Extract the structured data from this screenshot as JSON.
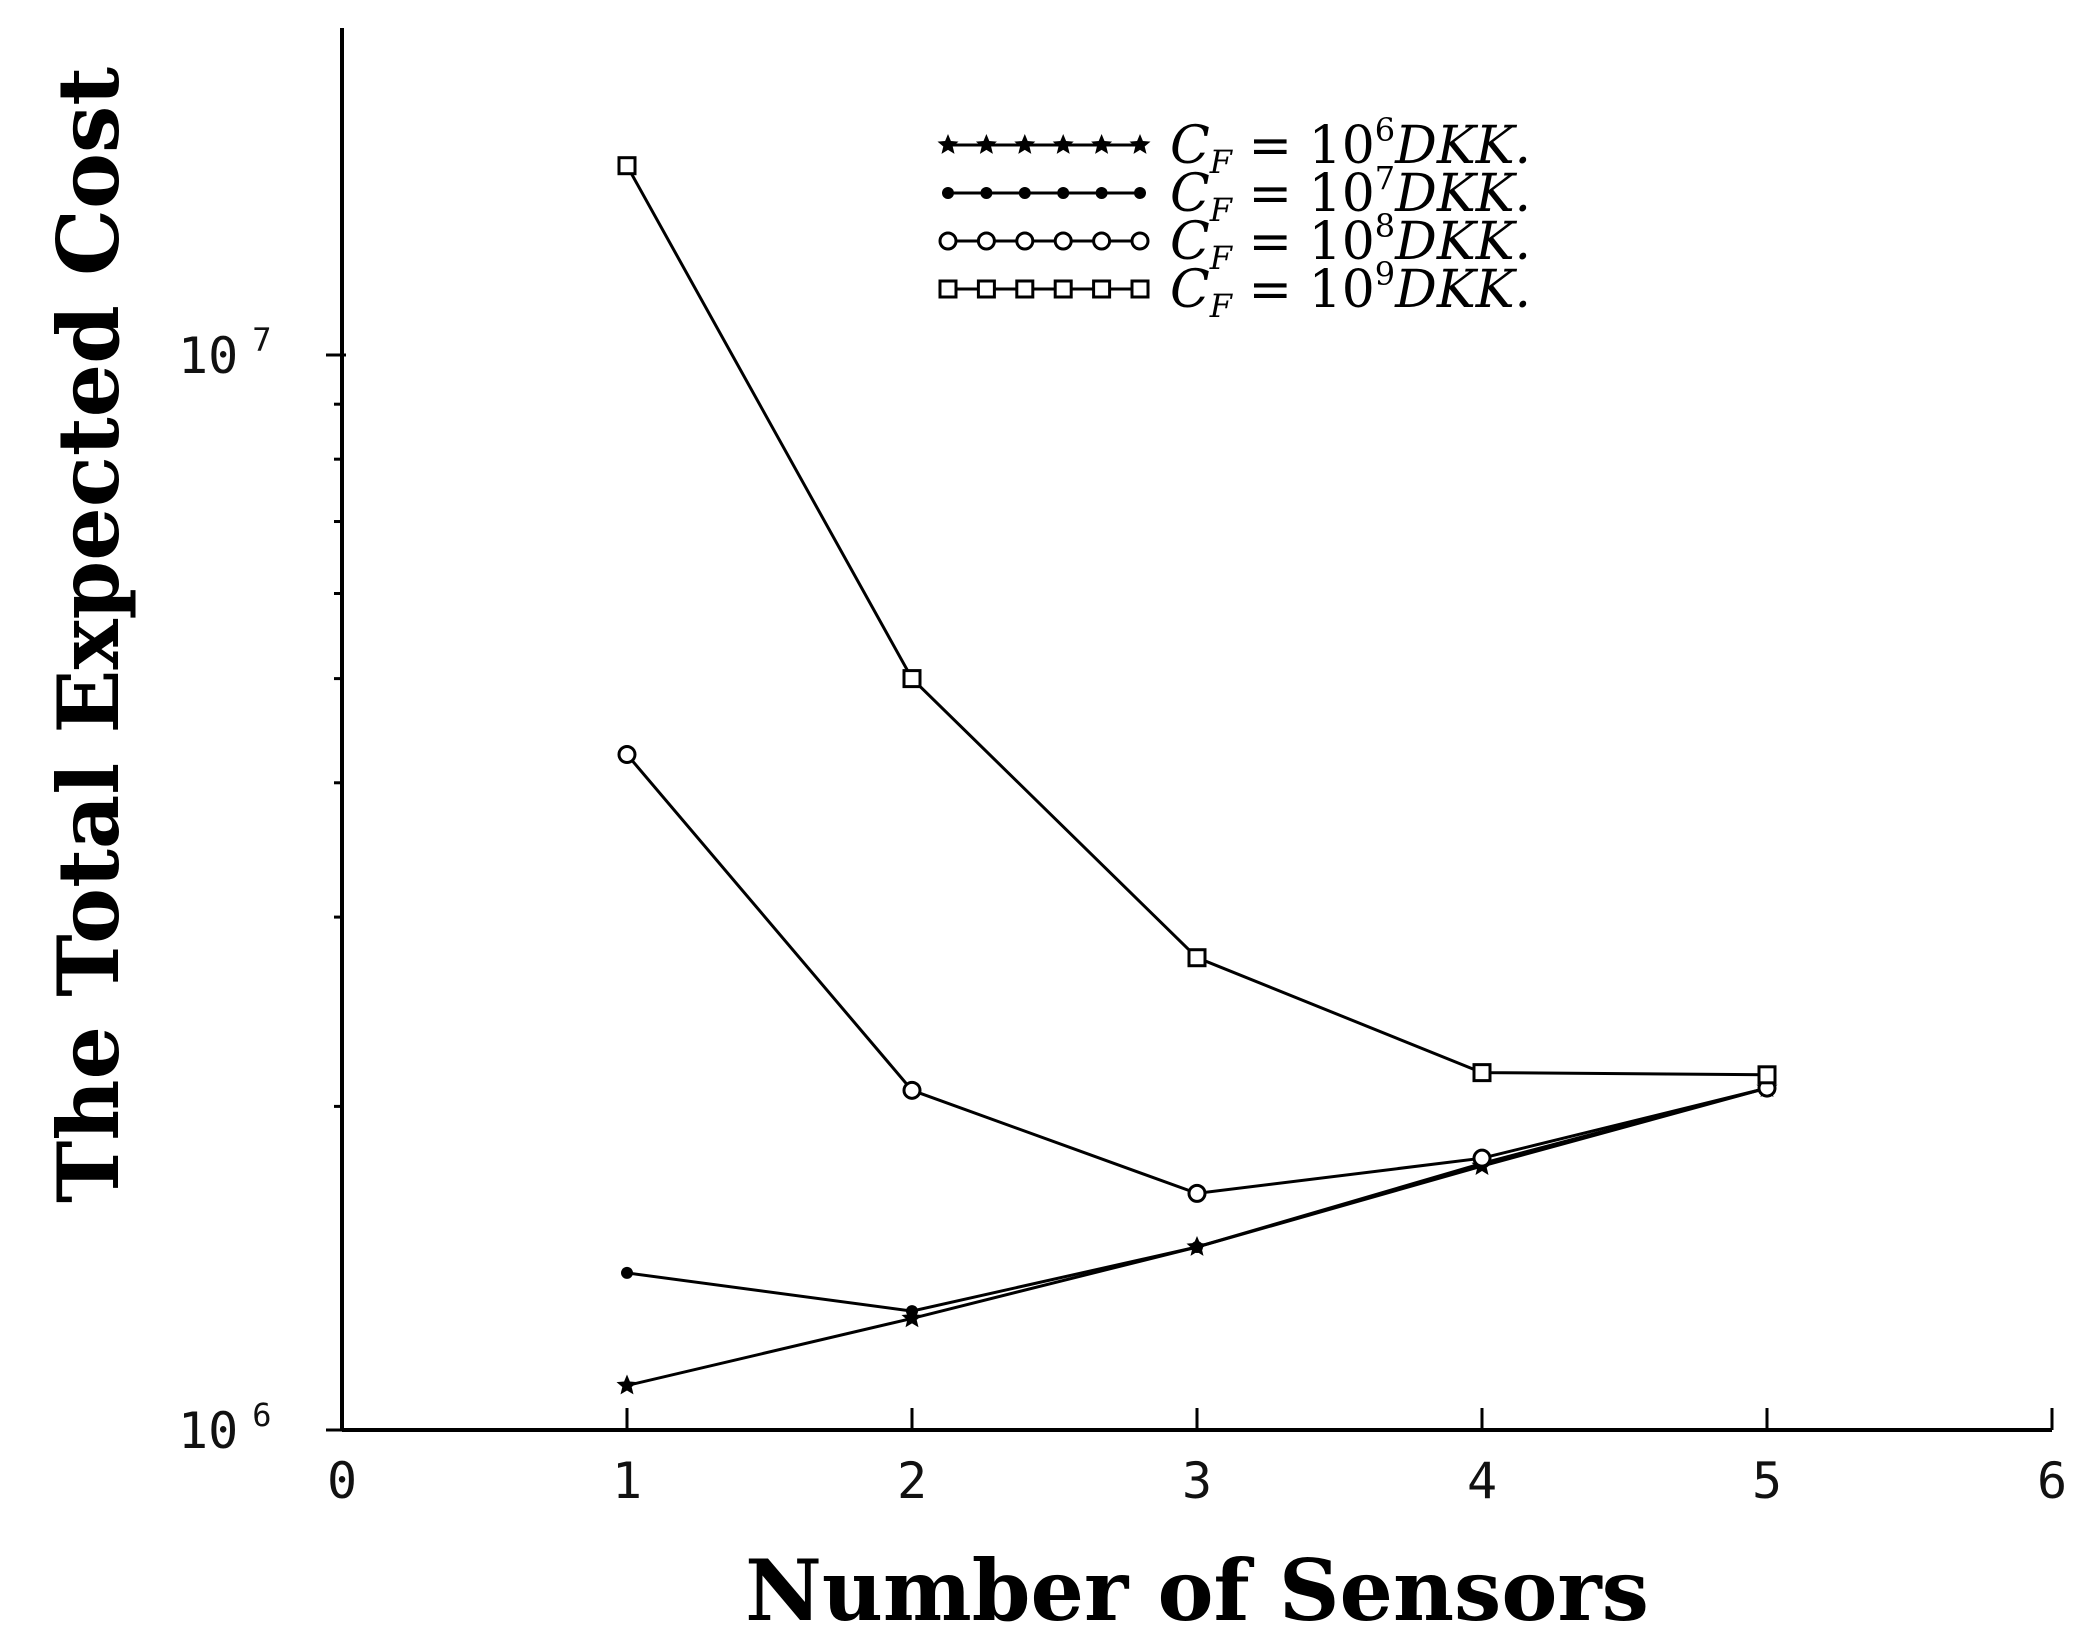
{
  "chart_data": {
    "type": "line",
    "xlabel": "Number of Sensors",
    "ylabel": "The Total Expected Cost",
    "xlim": [
      0,
      6
    ],
    "ylim": [
      1000000,
      17000000
    ],
    "y_scale": "log",
    "x_ticks": [
      "0",
      "1",
      "2",
      "3",
      "4",
      "5",
      "6"
    ],
    "y_tick_labels": [
      {
        "value": 1000000,
        "label": "10",
        "exp": "6"
      },
      {
        "value": 10000000,
        "label": "10",
        "exp": "7"
      }
    ],
    "y_minor_ticks": [
      2000000,
      3000000,
      4000000,
      5000000,
      6000000,
      7000000,
      8000000,
      9000000
    ],
    "legend_position": "top-right",
    "series": [
      {
        "name": "C_F = 10^6 DKK.",
        "name_prefix": "C",
        "name_sub": "F",
        "name_mid": " = 10",
        "name_exp": "6",
        "name_unit": "DKK.",
        "marker": "star",
        "x": [
          1,
          2,
          3,
          4,
          5
        ],
        "y": [
          1100000,
          1270000,
          1480000,
          1760000,
          2080000
        ]
      },
      {
        "name": "C_F = 10^7 DKK.",
        "name_prefix": "C",
        "name_sub": "F",
        "name_mid": " = 10",
        "name_exp": "7",
        "name_unit": "DKK.",
        "marker": "dot",
        "x": [
          1,
          2,
          3,
          4,
          5
        ],
        "y": [
          1400000,
          1290000,
          1480000,
          1770000,
          2080000
        ]
      },
      {
        "name": "C_F = 10^8 DKK.",
        "name_prefix": "C",
        "name_sub": "F",
        "name_mid": " = 10",
        "name_exp": "8",
        "name_unit": "DKK.",
        "marker": "circle",
        "x": [
          1,
          2,
          3,
          4,
          5
        ],
        "y": [
          4250000,
          2070000,
          1660000,
          1790000,
          2080000
        ]
      },
      {
        "name": "C_F = 10^9 DKK.",
        "name_prefix": "C",
        "name_sub": "F",
        "name_mid": " = 10",
        "name_exp": "9",
        "name_unit": "DKK.",
        "marker": "square",
        "x": [
          1,
          2,
          3,
          4,
          5
        ],
        "y": [
          15000000,
          5000000,
          2750000,
          2150000,
          2140000
        ]
      }
    ]
  }
}
